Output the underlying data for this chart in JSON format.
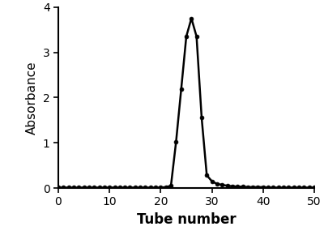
{
  "x": [
    0,
    1,
    2,
    3,
    4,
    5,
    6,
    7,
    8,
    9,
    10,
    11,
    12,
    13,
    14,
    15,
    16,
    17,
    18,
    19,
    20,
    21,
    22,
    23,
    24,
    25,
    26,
    27,
    28,
    29,
    30,
    31,
    32,
    33,
    34,
    35,
    36,
    37,
    38,
    39,
    40,
    41,
    42,
    43,
    44,
    45,
    46,
    47,
    48,
    49,
    50
  ],
  "y": [
    0.01,
    0.01,
    0.01,
    0.01,
    0.01,
    0.01,
    0.01,
    0.01,
    0.01,
    0.01,
    0.01,
    0.01,
    0.01,
    0.01,
    0.01,
    0.01,
    0.01,
    0.01,
    0.01,
    0.01,
    0.01,
    0.02,
    0.05,
    1.02,
    2.18,
    3.35,
    3.75,
    3.35,
    1.55,
    0.28,
    0.15,
    0.09,
    0.07,
    0.05,
    0.04,
    0.03,
    0.03,
    0.02,
    0.02,
    0.02,
    0.02,
    0.01,
    0.01,
    0.01,
    0.01,
    0.01,
    0.01,
    0.01,
    0.01,
    0.01,
    0.01
  ],
  "xlabel": "Tube number",
  "ylabel": "Absorbance",
  "xlim": [
    0,
    50
  ],
  "ylim": [
    0,
    4
  ],
  "xticks": [
    0,
    10,
    20,
    30,
    40,
    50
  ],
  "yticks": [
    0,
    1,
    2,
    3,
    4
  ],
  "line_color": "#000000",
  "marker": "o",
  "marker_size": 3.5,
  "line_width": 1.8,
  "bg_color": "#ffffff",
  "xlabel_fontsize": 12,
  "ylabel_fontsize": 11,
  "tick_fontsize": 10,
  "xlabel_fontweight": "bold",
  "ylabel_fontweight": "normal"
}
